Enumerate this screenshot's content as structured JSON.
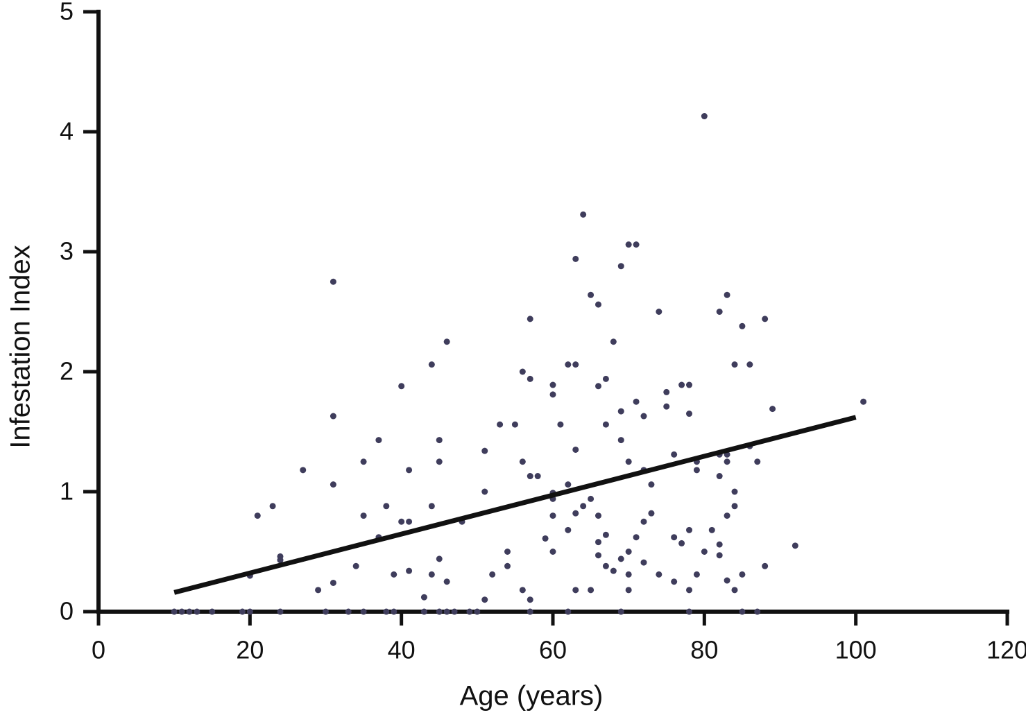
{
  "chart_data": {
    "type": "scatter",
    "x_label": "Age (years)",
    "y_label": "Infestation Index",
    "color": "#3f3d5c",
    "x": [
      20,
      21,
      23,
      24,
      24,
      27,
      29,
      31,
      31,
      31,
      31,
      34,
      35,
      35,
      37,
      37,
      38,
      39,
      40,
      40,
      41,
      41,
      41,
      43,
      44,
      44,
      44,
      45,
      45,
      45,
      46,
      46,
      48,
      51,
      51,
      51,
      52,
      53,
      54,
      54,
      55,
      56,
      56,
      56,
      57,
      57,
      57,
      57,
      58,
      59,
      60,
      60,
      60,
      60,
      60,
      60,
      61,
      62,
      62,
      62,
      63,
      63,
      63,
      63,
      63,
      64,
      64,
      65,
      65,
      65,
      66,
      66,
      66,
      66,
      66,
      67,
      67,
      67,
      67,
      68,
      68,
      69,
      69,
      69,
      69,
      70,
      70,
      70,
      70,
      70,
      71,
      71,
      71,
      72,
      72,
      72,
      72,
      73,
      73,
      74,
      74,
      75,
      75,
      76,
      76,
      76,
      77,
      77,
      78,
      78,
      78,
      78,
      79,
      79,
      79,
      80,
      80,
      81,
      82,
      82,
      82,
      82,
      82,
      83,
      83,
      83,
      83,
      83,
      84,
      84,
      84,
      84,
      85,
      85,
      86,
      86,
      87,
      88,
      88,
      89,
      92,
      101,
      10,
      11,
      12,
      13,
      15,
      19,
      20,
      24,
      30,
      33,
      35,
      38,
      39,
      43,
      45,
      46,
      47,
      49,
      50,
      57,
      62,
      69,
      78,
      85,
      87
    ],
    "values": [
      0.3,
      0.8,
      0.88,
      0.46,
      0.43,
      1.18,
      0.18,
      2.75,
      1.63,
      1.06,
      0.24,
      0.38,
      0.8,
      1.25,
      1.43,
      0.62,
      0.88,
      0.31,
      1.88,
      0.75,
      0.75,
      1.18,
      0.34,
      0.12,
      2.06,
      0.88,
      0.31,
      1.43,
      1.25,
      0.44,
      2.25,
      0.25,
      0.75,
      1.34,
      1.0,
      0.1,
      0.31,
      1.56,
      0.5,
      0.38,
      1.56,
      2.0,
      1.25,
      0.18,
      2.44,
      1.94,
      1.13,
      0.1,
      1.13,
      0.61,
      1.89,
      1.81,
      0.99,
      0.94,
      0.8,
      0.5,
      1.56,
      2.06,
      1.06,
      0.68,
      2.94,
      2.06,
      1.35,
      0.82,
      0.18,
      3.31,
      0.88,
      2.64,
      0.94,
      0.18,
      2.56,
      1.88,
      0.8,
      0.58,
      0.47,
      1.94,
      1.56,
      0.64,
      0.38,
      2.25,
      0.34,
      2.88,
      1.67,
      1.43,
      0.44,
      3.06,
      1.25,
      0.5,
      0.31,
      0.18,
      3.06,
      1.75,
      0.62,
      1.63,
      1.18,
      0.75,
      0.41,
      1.06,
      0.82,
      2.5,
      0.31,
      1.83,
      1.71,
      1.31,
      0.62,
      0.25,
      1.89,
      0.57,
      1.89,
      1.65,
      0.68,
      0.18,
      1.25,
      1.18,
      0.31,
      4.13,
      0.5,
      0.68,
      2.5,
      1.31,
      1.13,
      0.56,
      0.47,
      2.64,
      1.31,
      1.25,
      0.8,
      0.26,
      2.06,
      1.0,
      0.88,
      0.18,
      2.38,
      0.31,
      2.06,
      1.38,
      1.25,
      2.44,
      0.38,
      1.69,
      0.55,
      1.75,
      0,
      0,
      0,
      0,
      0,
      0,
      0,
      0,
      0,
      0,
      0,
      0,
      0,
      0,
      0,
      0,
      0,
      0,
      0,
      0,
      0,
      0,
      0,
      0,
      0
    ],
    "fit_line": {
      "x": [
        10,
        100
      ],
      "values": [
        0.16,
        1.62
      ],
      "color": "#111111"
    },
    "xlim": [
      0,
      120
    ],
    "xticks": [
      0,
      20,
      40,
      60,
      80,
      100,
      120
    ],
    "ylim": [
      0,
      5
    ],
    "yticks": [
      0,
      1,
      2,
      3,
      4,
      5
    ]
  }
}
